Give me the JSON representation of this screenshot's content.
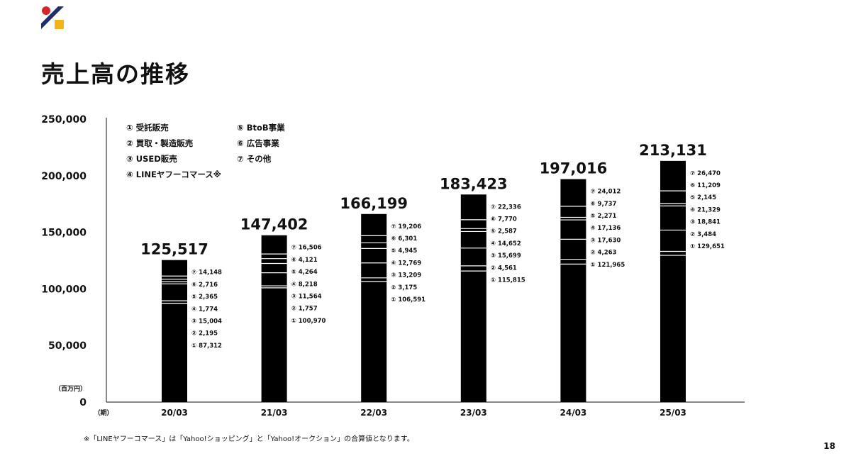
{
  "page": {
    "title": "売上高の推移",
    "footnote": "※「LINEヤフーコマース」は「Yahoo!ショッピング」と「Yahoo!オークション」の合算値となります。",
    "page_number": "18"
  },
  "colors": {
    "bar": "#000000",
    "separator": "#ffffff",
    "axis": "#111111",
    "logo_red": "#d8232a",
    "logo_navy": "#1f2f6e",
    "logo_yellow": "#f2b417"
  },
  "chart_data": {
    "type": "bar",
    "stacked": true,
    "unit_label": "（百万円）",
    "period_label": "（期）",
    "ylim": [
      0,
      250000
    ],
    "yticks": [
      0,
      50000,
      100000,
      150000,
      200000,
      250000
    ],
    "ytick_labels": [
      "0",
      "50,000",
      "100,000",
      "150,000",
      "200,000",
      "250,000"
    ],
    "grid": false,
    "legend_position": "top-left",
    "categories": [
      "20/03",
      "21/03",
      "22/03",
      "23/03",
      "24/03",
      "25/03"
    ],
    "totals": [
      125517,
      147402,
      166199,
      183423,
      197016,
      213131
    ],
    "total_labels": [
      "125,517",
      "147,402",
      "166,199",
      "183,423",
      "197,016",
      "213,131"
    ],
    "series": [
      {
        "marker": "①",
        "name": "受託販売",
        "values": [
          87312,
          100970,
          106591,
          115815,
          121965,
          129651
        ],
        "labels": [
          "87,312",
          "100,970",
          "106,591",
          "115,815",
          "121,965",
          "129,651"
        ]
      },
      {
        "marker": "②",
        "name": "買取・製造販売",
        "values": [
          2195,
          1757,
          3175,
          4561,
          4263,
          3484
        ],
        "labels": [
          "2,195",
          "1,757",
          "3,175",
          "4,561",
          "4,263",
          "3,484"
        ]
      },
      {
        "marker": "③",
        "name": "USED販売",
        "values": [
          15004,
          11564,
          13209,
          15699,
          17630,
          18841
        ],
        "labels": [
          "15,004",
          "11,564",
          "13,209",
          "15,699",
          "17,630",
          "18,841"
        ]
      },
      {
        "marker": "④",
        "name": "LINEヤフーコマース※",
        "values": [
          1774,
          8218,
          12769,
          14652,
          17136,
          21329
        ],
        "labels": [
          "1,774",
          "8,218",
          "12,769",
          "14,652",
          "17,136",
          "21,329"
        ]
      },
      {
        "marker": "⑤",
        "name": "BtoB事業",
        "values": [
          2365,
          4264,
          4945,
          2587,
          2271,
          2145
        ],
        "labels": [
          "2,365",
          "4,264",
          "4,945",
          "2,587",
          "2,271",
          "2,145"
        ]
      },
      {
        "marker": "⑥",
        "name": "広告事業",
        "values": [
          2716,
          4121,
          6301,
          7770,
          9737,
          11209
        ],
        "labels": [
          "2,716",
          "4,121",
          "6,301",
          "7,770",
          "9,737",
          "11,209"
        ]
      },
      {
        "marker": "⑦",
        "name": "その他",
        "values": [
          14148,
          16506,
          19206,
          22336,
          24012,
          26470
        ],
        "labels": [
          "14,148",
          "16,506",
          "19,206",
          "22,336",
          "24,012",
          "26,470"
        ]
      }
    ]
  }
}
